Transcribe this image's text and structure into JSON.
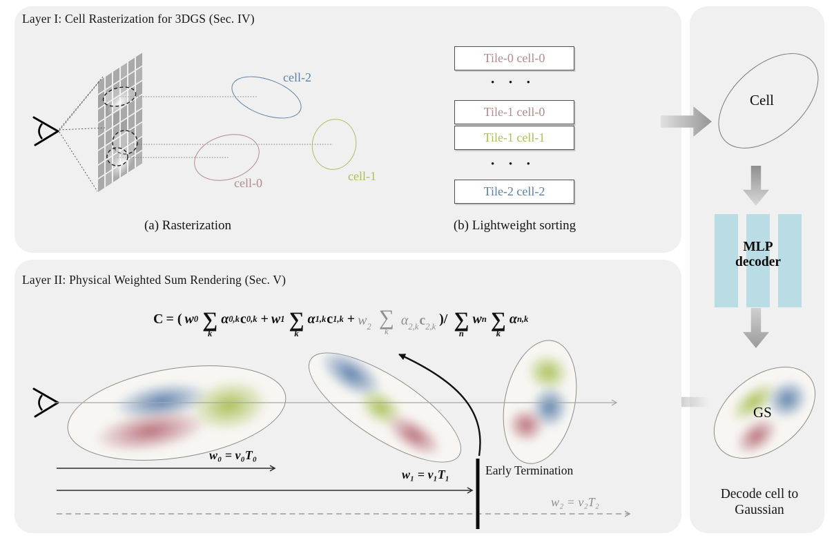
{
  "colors": {
    "panel_bg": "#f0f0f0",
    "cell0_pink": "#b48a8a",
    "cell1_green": "#aabf5e",
    "cell2_blue": "#5b7fa5",
    "mlp_bar_blue": "#b9dce5",
    "blob_blue": "#587ca8",
    "blob_red": "#b05e6a",
    "blob_green": "#a8be52",
    "dim_gray": "#8f8f8f"
  },
  "layer1": {
    "title": "Layer I: Cell Rasterization for 3DGS (Sec. IV)",
    "caption_a": "(a) Rasterization",
    "caption_b": "(b) Lightweight sorting",
    "dots": "• • •",
    "cells": [
      {
        "label": "cell-0",
        "color": "#b48a8a"
      },
      {
        "label": "cell-1",
        "color": "#aabf5e"
      },
      {
        "label": "cell-2",
        "color": "#5b7fa5"
      }
    ],
    "tiles": [
      {
        "label": "Tile-0 cell-0",
        "color": "#b48a8a"
      },
      {
        "label": "Tile-1 cell-0",
        "color": "#b48a8a"
      },
      {
        "label": "Tile-1 cell-1",
        "color": "#aabf5e"
      },
      {
        "label": "Tile-2 cell-2",
        "color": "#5b7fa5"
      }
    ]
  },
  "layer2": {
    "title": "Layer II: Physical Weighted Sum Rendering (Sec. V)",
    "formula": {
      "C": "C",
      "eq": "= (",
      "w": "w",
      "alpha": "α",
      "c": "c",
      "sigma": "∑",
      "k": "k",
      "n": "n",
      "plus": "+",
      "close": ")/",
      "sub0": "0",
      "sub1": "1",
      "sub2": "2",
      "subn": "n",
      "sub0k": "0,k",
      "sub1k": "1,k",
      "sub2k": "2,k",
      "subnk": "n,k"
    },
    "w0_label": "w₀ = v₀T₀",
    "w1_label": "w₁ = v₁T₁",
    "w2_label": "w₂ = v₂T₂",
    "early_termination": "Early Termination"
  },
  "right_panel": {
    "cell_label": "Cell",
    "mlp_line1": "MLP",
    "mlp_line2": "decoder",
    "gs_label": "GS",
    "caption_line1": "Decode cell to",
    "caption_line2": "Gaussian"
  }
}
